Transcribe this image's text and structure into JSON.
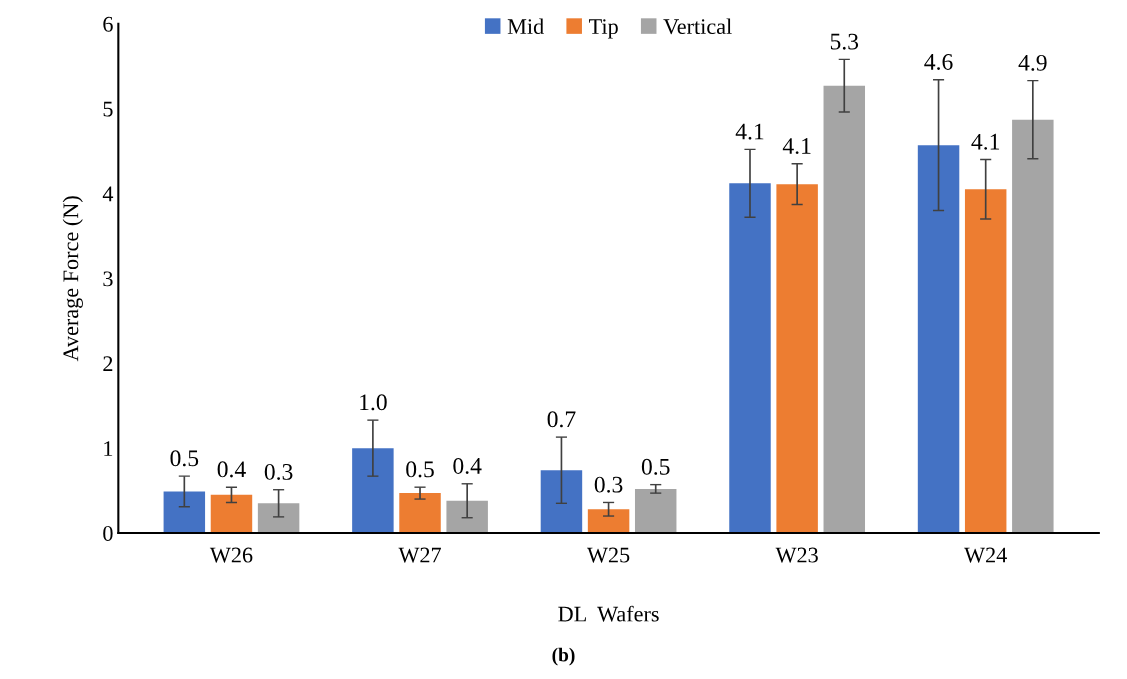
{
  "chart_data": {
    "type": "bar",
    "xlabel": "DL  Wafers",
    "ylabel": "Average Force (N)",
    "categories": [
      "W26",
      "W27",
      "W25",
      "W23",
      "W24"
    ],
    "series": [
      {
        "name": "Mid",
        "color": "#4472c4",
        "values": [
          0.49,
          1.0,
          0.74,
          4.12,
          4.57
        ],
        "errors": [
          0.18,
          0.33,
          0.39,
          0.4,
          0.77
        ],
        "value_labels": [
          "0.5",
          "1.0",
          "0.7",
          "4.1",
          "4.6"
        ]
      },
      {
        "name": "Tip",
        "color": "#ed7d31",
        "values": [
          0.45,
          0.47,
          0.28,
          4.11,
          4.05
        ],
        "errors": [
          0.09,
          0.07,
          0.08,
          0.24,
          0.35
        ],
        "value_labels": [
          "0.4",
          "0.5",
          "0.3",
          "4.1",
          "4.1"
        ]
      },
      {
        "name": "Vertical",
        "color": "#a5a5a5",
        "values": [
          0.35,
          0.38,
          0.52,
          5.27,
          4.87
        ],
        "errors": [
          0.16,
          0.2,
          0.05,
          0.31,
          0.46
        ],
        "value_labels": [
          "0.3",
          "0.4",
          "0.5",
          "5.3",
          "4.9"
        ]
      }
    ],
    "ylim": [
      0,
      6
    ],
    "yticks": [
      0,
      1,
      2,
      3,
      4,
      5,
      6
    ],
    "grid": false,
    "legend": "top",
    "annotations": [
      "(b)"
    ]
  }
}
